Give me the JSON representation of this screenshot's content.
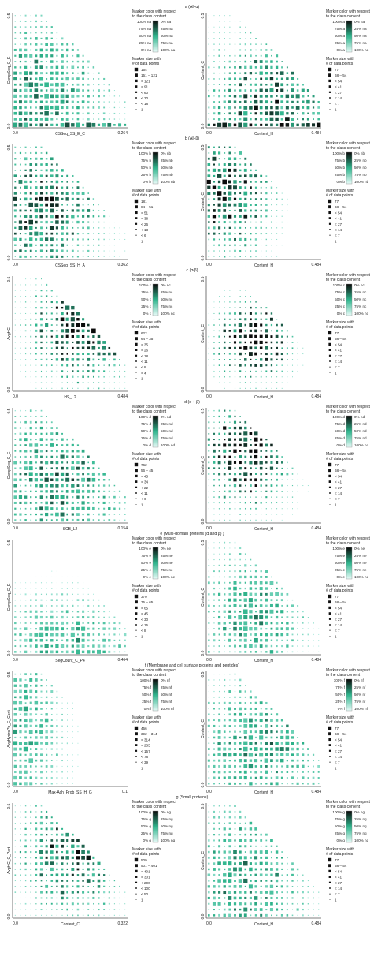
{
  "figure": {
    "legend_color_title": "Marker color with respect\nto the class content",
    "legend_size_title": "Marker size with\n# of data points",
    "colors": {
      "high": "#0a0a0a",
      "mid": "#2fb58d",
      "low": "#bff3ec"
    }
  },
  "chart_data": [
    {
      "panel": "a",
      "title": "a (All-α)",
      "class_code": "na",
      "left": {
        "type": "scatter",
        "xlabel": "CSSeq_SS_E_C",
        "ylabel": "CompSeq_C_E",
        "xlim": [
          0,
          0.264
        ],
        "ylim": [
          0,
          0.5
        ],
        "x_tick_labels": [
          "0.0",
          "0.264"
        ],
        "y_tick_labels": [
          "0.0",
          "0.5"
        ],
        "size_legend": [
          "154",
          "151 – 121",
          "< 121",
          "< 91",
          "< 60",
          "< 30",
          "< 18",
          "1"
        ],
        "color_legend": [
          "100% na",
          "75% na",
          "50% na",
          "25% na",
          "0% na"
        ],
        "color_legend_right": [
          "0% na",
          "25% na",
          "50% na",
          "75% na",
          "100% na"
        ]
      },
      "right": {
        "type": "scatter",
        "xlabel": "Content_H",
        "ylabel": "Content_C",
        "xlim": [
          0,
          0.484
        ],
        "ylim": [
          0,
          0.5
        ],
        "x_tick_labels": [
          "0.0",
          "0.484"
        ],
        "y_tick_labels": [
          "0.0",
          "0.5"
        ],
        "size_legend": [
          "77",
          "68 – 54",
          "< 54",
          "< 41",
          "< 27",
          "< 14",
          "< 7",
          "1"
        ],
        "color_legend": [
          "100% a",
          "75% a",
          "50% a",
          "25% a",
          "0% a"
        ],
        "color_legend_right": [
          "0% na",
          "25% na",
          "50% na",
          "75% na",
          "100% na"
        ]
      }
    },
    {
      "panel": "b",
      "title": "b (All-β)",
      "class_code": "nb",
      "left": {
        "type": "scatter",
        "xlabel": "CSSeq_SS_H_A",
        "ylabel": "",
        "xlim": [
          0,
          0.362
        ],
        "ylim": [
          0,
          0.5
        ],
        "x_tick_labels": [
          "0.0",
          "0.362"
        ],
        "y_tick_labels": [
          "0.0",
          "0.5"
        ],
        "size_legend": [
          "181",
          "84 – 51",
          "< 51",
          "< 38",
          "< 26",
          "< 13",
          "< 6",
          "1"
        ],
        "color_legend": [
          "100% b",
          "75% b",
          "50% b",
          "25% b",
          "0% b"
        ],
        "color_legend_right": [
          "0% nb",
          "25% nb",
          "50% nb",
          "75% nb",
          "100% nb"
        ]
      },
      "right": {
        "type": "scatter",
        "xlabel": "Content_H",
        "ylabel": "Content_C",
        "xlim": [
          0,
          0.484
        ],
        "ylim": [
          0,
          0.5
        ],
        "x_tick_labels": [
          "0.0",
          "0.484"
        ],
        "y_tick_labels": [
          "0.0",
          "0.5"
        ],
        "size_legend": [
          "77",
          "68 – 54",
          "< 54",
          "< 41",
          "< 27",
          "< 14",
          "< 7",
          "1"
        ],
        "color_legend": [
          "100% b",
          "75% b",
          "50% b",
          "25% b",
          "0% b"
        ],
        "color_legend_right": [
          "0% nb",
          "25% nb",
          "50% nb",
          "75% nb",
          "100% nb"
        ]
      }
    },
    {
      "panel": "c",
      "title": "c (α/β)",
      "class_code": "nc",
      "left": {
        "type": "scatter",
        "xlabel": "HS_L2",
        "ylabel": "AvgHC",
        "xlim": [
          0,
          0.484
        ],
        "ylim": [
          0,
          0.5
        ],
        "x_tick_labels": [
          "0.0",
          "0.484"
        ],
        "y_tick_labels": [
          "0.0",
          "0.5"
        ],
        "size_legend": [
          "622",
          "64 – 35",
          "< 35",
          "< 26",
          "< 18",
          "< 11",
          "< 8",
          "< 4",
          "1"
        ],
        "color_legend": [
          "100% c",
          "75% c",
          "50% c",
          "25% c",
          "0% c"
        ],
        "color_legend_right": [
          "0% nc",
          "25% nc",
          "50% nc",
          "75% nc",
          "100% nc"
        ]
      },
      "right": {
        "type": "scatter",
        "xlabel": "Content_H",
        "ylabel": "Content_C",
        "xlim": [
          0,
          0.484
        ],
        "ylim": [
          0,
          0.5
        ],
        "x_tick_labels": [
          "0.0",
          "0.484"
        ],
        "y_tick_labels": [
          "0.0",
          "0.5"
        ],
        "size_legend": [
          "77",
          "68 – 54",
          "< 54",
          "< 41",
          "< 27",
          "< 14",
          "< 7",
          "1"
        ],
        "color_legend": [
          "100% c",
          "75% c",
          "50% c",
          "25% c",
          "0% c"
        ],
        "color_legend_right": [
          "0% nc",
          "25% nc",
          "50% nc",
          "75% nc",
          "100% nc"
        ]
      }
    },
    {
      "panel": "d",
      "title": "d (α + β)",
      "class_code": "nd",
      "left": {
        "type": "scatter",
        "xlabel": "SCB_L2",
        "ylabel": "CompSeq_C_E",
        "xlim": [
          0,
          0.154
        ],
        "ylim": [
          0,
          0.5
        ],
        "x_tick_labels": [
          "0.0",
          "0.154"
        ],
        "y_tick_labels": [
          "0.0",
          "0.5"
        ],
        "size_legend": [
          "762",
          "56 – 45",
          "< 45",
          "< 34",
          "< 22",
          "< 11",
          "< 6",
          "1"
        ],
        "color_legend": [
          "100% d",
          "75% d",
          "50% d",
          "25% d",
          "0% d"
        ],
        "color_legend_right": [
          "0% nd",
          "25% nd",
          "50% nd",
          "75% nd",
          "100% nd"
        ]
      },
      "right": {
        "type": "scatter",
        "xlabel": "Content_H",
        "ylabel": "Content_C",
        "xlim": [
          0,
          0.484
        ],
        "ylim": [
          0,
          0.5
        ],
        "x_tick_labels": [
          "0.0",
          "0.484"
        ],
        "y_tick_labels": [
          "0.0",
          "0.5"
        ],
        "size_legend": [
          "77",
          "68 – 54",
          "< 54",
          "< 41",
          "< 27",
          "< 14",
          "< 7",
          "1"
        ],
        "color_legend": [
          "100% d",
          "75% d",
          "50% d",
          "25% d",
          "0% d"
        ],
        "color_legend_right": [
          "0% nd",
          "25% nd",
          "50% nd",
          "75% nd",
          "100% nd"
        ]
      }
    },
    {
      "panel": "e",
      "title": "e (Multi-domain proteins (α and β) )",
      "class_code": "ne",
      "left": {
        "type": "scatter",
        "xlabel": "SegCount_C_P4",
        "ylabel": "CompSeq_C_E",
        "xlim": [
          0,
          0.464
        ],
        "ylim": [
          0,
          0.5
        ],
        "x_tick_labels": [
          "0.0",
          "0.464"
        ],
        "y_tick_labels": [
          "0.0",
          "0.5"
        ],
        "size_legend": [
          "370",
          "75 – 65",
          "< 65",
          "< 45",
          "< 30",
          "< 15",
          "< 8",
          "1"
        ],
        "color_legend": [
          "100% e",
          "75% e",
          "50% e",
          "25% e",
          "0% e"
        ],
        "color_legend_right": [
          "0% ne",
          "25% ne",
          "50% ne",
          "75% ne",
          "100% ne"
        ]
      },
      "right": {
        "type": "scatter",
        "xlabel": "Content_H",
        "ylabel": "Content_C",
        "xlim": [
          0,
          0.484
        ],
        "ylim": [
          0,
          0.5
        ],
        "x_tick_labels": [
          "0.0",
          "0.484"
        ],
        "y_tick_labels": [
          "0.0",
          "0.5"
        ],
        "size_legend": [
          "77",
          "68 – 54",
          "< 54",
          "< 41",
          "< 27",
          "< 14",
          "< 7",
          "1"
        ],
        "color_legend": [
          "100% e",
          "75% e",
          "50% e",
          "25% e",
          "0% e"
        ],
        "color_legend_right": [
          "0% ne",
          "25% ne",
          "50% ne",
          "75% ne",
          "100% ne"
        ]
      }
    },
    {
      "panel": "f",
      "title": "f (Membrane and cell surface proteins and peptides)",
      "class_code": "nf",
      "left": {
        "type": "scatter",
        "xlabel": "Max-Ach_Prob_SS_H_G",
        "ylabel": "AvgHydroPh_E_Cont",
        "xlim": [
          0,
          0.1
        ],
        "ylim": [
          0,
          0.5
        ],
        "x_tick_labels": [
          "0.0",
          "0.1"
        ],
        "y_tick_labels": [
          "0.0",
          "0.5"
        ],
        "size_legend": [
          "456",
          "392 – 314",
          "< 314",
          "< 235",
          "< 157",
          "< 78",
          "< 39",
          "1"
        ],
        "color_legend": [
          "100% f",
          "75% f",
          "50% f",
          "25% f",
          "0% f"
        ],
        "color_legend_right": [
          "0% nf",
          "25% nf",
          "50% nf",
          "75% nf",
          "100% nf"
        ]
      },
      "right": {
        "type": "scatter",
        "xlabel": "Content_H",
        "ylabel": "Content_C",
        "xlim": [
          0,
          0.484
        ],
        "ylim": [
          0,
          0.5
        ],
        "x_tick_labels": [
          "0.0",
          "0.484"
        ],
        "y_tick_labels": [
          "0.0",
          "0.5"
        ],
        "size_legend": [
          "77",
          "68 – 54",
          "< 54",
          "< 41",
          "< 27",
          "< 14",
          "< 7",
          "1"
        ],
        "color_legend": [
          "100% f",
          "75% f",
          "50% f",
          "25% f",
          "0% f"
        ],
        "color_legend_right": [
          "0% nf",
          "25% nf",
          "50% nf",
          "75% nf",
          "100% nf"
        ]
      }
    },
    {
      "panel": "g",
      "title": "g (Small proteins)",
      "class_code": "ng",
      "left": {
        "type": "scatter",
        "xlabel": "Content_C",
        "ylabel": "AvgHC_C_Part",
        "xlim": [
          0,
          0.322
        ],
        "ylim": [
          0,
          0.5
        ],
        "x_tick_labels": [
          "0.0",
          "0.322"
        ],
        "y_tick_labels": [
          "0.0",
          "0.5"
        ],
        "size_legend": [
          "509",
          "501 – 401",
          "< 401",
          "< 301",
          "< 200",
          "< 100",
          "< 50",
          "1"
        ],
        "color_legend": [
          "100% g",
          "75% g",
          "50% g",
          "25% g",
          "0% g"
        ],
        "color_legend_right": [
          "0% ng",
          "25% ng",
          "50% ng",
          "75% ng",
          "100% ng"
        ]
      },
      "right": {
        "type": "scatter",
        "xlabel": "Content_H",
        "ylabel": "Content_C",
        "xlim": [
          0,
          0.484
        ],
        "ylim": [
          0,
          0.5
        ],
        "x_tick_labels": [
          "0.0",
          "0.484"
        ],
        "y_tick_labels": [
          "0.0",
          "0.5"
        ],
        "size_legend": [
          "77",
          "68 – 54",
          "< 54",
          "< 41",
          "< 27",
          "< 14",
          "< 7",
          "1"
        ],
        "color_legend": [
          "100% g",
          "75% g",
          "50% g",
          "25% g",
          "0% g"
        ],
        "color_legend_right": [
          "0% ng",
          "25% ng",
          "50% ng",
          "75% ng",
          "100% ng"
        ]
      }
    }
  ]
}
